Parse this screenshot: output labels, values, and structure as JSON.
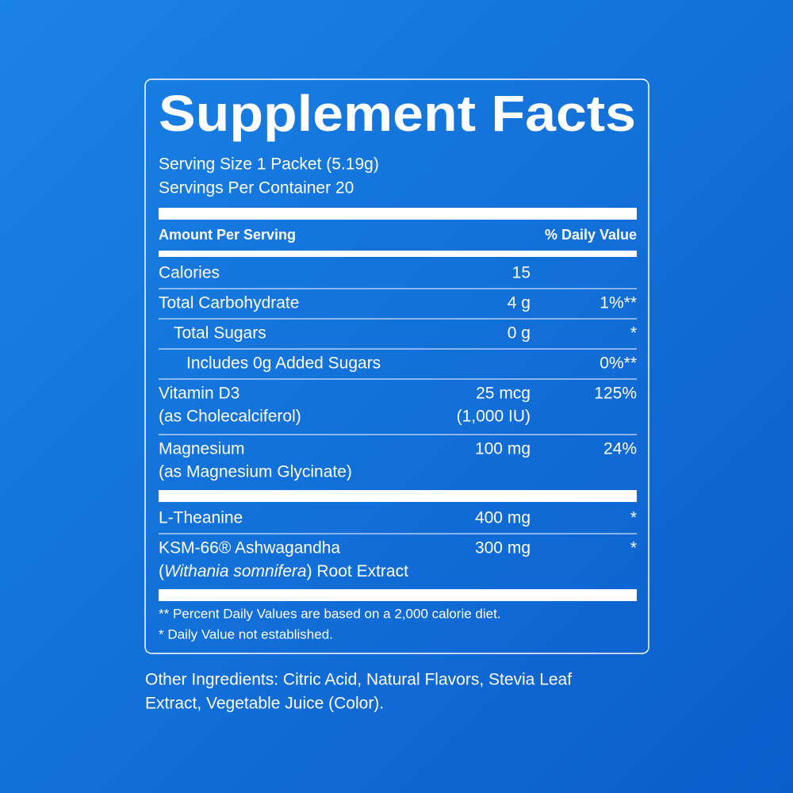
{
  "label": {
    "title": "Supplement Facts",
    "serving_size": "Serving Size 1 Packet (5.19g)",
    "servings_per_container": "Servings Per Container 20",
    "header": {
      "amount": "Amount Per Serving",
      "daily_value": "% Daily Value"
    },
    "sections": [
      {
        "rows": [
          {
            "lines": [
              "Calories"
            ],
            "amount": [
              "15"
            ],
            "indent": 0
          },
          {
            "lines": [
              "Total Carbohydrate"
            ],
            "amount": [
              "4 g"
            ],
            "daily_value": "1%**",
            "indent": 0
          },
          {
            "lines": [
              "Total Sugars"
            ],
            "amount": [
              "0 g"
            ],
            "daily_value": "*",
            "indent": 1
          },
          {
            "lines": [
              "Includes 0g Added Sugars"
            ],
            "daily_value": "0%**",
            "indent": 2
          },
          {
            "lines": [
              "Vitamin D3",
              "(as Cholecalciferol)"
            ],
            "amount": [
              "25 mcg",
              "(1,000 IU)"
            ],
            "daily_value": "125%",
            "indent": 0
          },
          {
            "lines": [
              "Magnesium",
              "(as Magnesium Glycinate)"
            ],
            "amount": [
              "100 mg"
            ],
            "daily_value": "24%",
            "indent": 0
          }
        ]
      },
      {
        "rows": [
          {
            "lines": [
              "L-Theanine"
            ],
            "amount": [
              "400 mg"
            ],
            "daily_value": "*",
            "indent": 0
          },
          {
            "lines": [
              "KSM-66® Ashwagandha",
              [
                {
                  "text": "("
                },
                {
                  "text": "Withania somnifera",
                  "italic": true
                },
                {
                  "text": ") Root Extract"
                }
              ]
            ],
            "amount": [
              "300 mg"
            ],
            "daily_value": "*",
            "indent": 0
          }
        ]
      }
    ],
    "footnotes": [
      "** Percent Daily Values are based on a 2,000 calorie diet.",
      "* Daily Value not established."
    ]
  },
  "other_ingredients": [
    "Other Ingredients: Citric Acid, Natural Flavors, Stevia Leaf",
    "Extract, Vegetable Juice (Color)."
  ]
}
